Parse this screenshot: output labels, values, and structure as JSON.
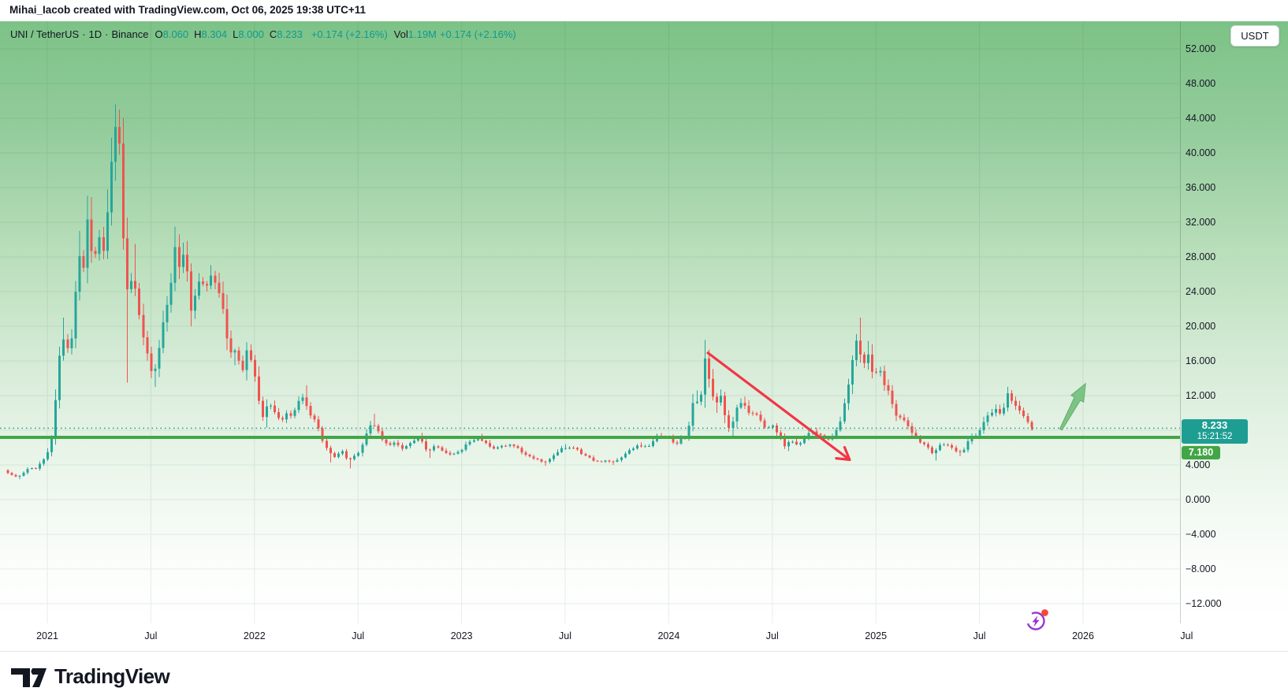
{
  "attribution": "Mihai_Iacob created with TradingView.com, Oct 06, 2025 19:38 UTC+11",
  "header": {
    "currency_button": "USDT"
  },
  "legend": {
    "symbol": "UNI / TetherUS",
    "sep": "·",
    "interval": "1D",
    "exchange": "Binance",
    "ohlc": [
      {
        "label": "O",
        "value": "8.060"
      },
      {
        "label": "H",
        "value": "8.304"
      },
      {
        "label": "L",
        "value": "8.000"
      },
      {
        "label": "C",
        "value": "8.233"
      }
    ],
    "change": "+0.174 (+2.16%)",
    "vol_label": "Vol",
    "vol_value": "1.19M",
    "vol_change": "+0.174 (+2.16%)"
  },
  "price_scale": {
    "ticks": [
      {
        "label": "52.000",
        "value": 52
      },
      {
        "label": "48.000",
        "value": 48
      },
      {
        "label": "44.000",
        "value": 44
      },
      {
        "label": "40.000",
        "value": 40
      },
      {
        "label": "36.000",
        "value": 36
      },
      {
        "label": "32.000",
        "value": 32
      },
      {
        "label": "28.000",
        "value": 28
      },
      {
        "label": "24.000",
        "value": 24
      },
      {
        "label": "20.000",
        "value": 20
      },
      {
        "label": "16.000",
        "value": 16
      },
      {
        "label": "12.000",
        "value": 12
      },
      {
        "label": "4.000",
        "value": 4
      },
      {
        "label": "0.000",
        "value": 0
      },
      {
        "label": "−4.000",
        "value": -4
      },
      {
        "label": "−8.000",
        "value": -8
      },
      {
        "label": "−12.000",
        "value": -12
      }
    ],
    "current_price": {
      "label": "8.233",
      "countdown": "15:21:52",
      "value": 8.233
    },
    "level_label": {
      "label": "7.180",
      "value": 7.18
    }
  },
  "time_scale": {
    "labels": [
      {
        "label": "2021",
        "t": 2021.0
      },
      {
        "label": "Jul",
        "t": 2021.5
      },
      {
        "label": "2022",
        "t": 2022.0
      },
      {
        "label": "Jul",
        "t": 2022.5
      },
      {
        "label": "2023",
        "t": 2023.0
      },
      {
        "label": "Jul",
        "t": 2023.5
      },
      {
        "label": "2024",
        "t": 2024.0
      },
      {
        "label": "Jul",
        "t": 2024.5
      },
      {
        "label": "2025",
        "t": 2025.0
      },
      {
        "label": "Jul",
        "t": 2025.5
      },
      {
        "label": "2026",
        "t": 2026.0
      },
      {
        "label": "Jul",
        "t": 2026.5
      }
    ]
  },
  "footer": {
    "brand": "TradingView"
  },
  "colors": {
    "up": "#26a69a",
    "down": "#ef5350",
    "text": "#131722",
    "teal_text": "#109a92",
    "grid": "rgba(34,85,48,0.10)",
    "current_line": "#1e9e93",
    "level_line": "#42a647",
    "red_arrow": "#f23645",
    "green_arrow_fill": "#7cc485",
    "green_arrow_stroke": "#63ae6d",
    "icon_purple": "#9c32d1",
    "icon_dot": "#f5483d"
  },
  "chart_data": {
    "type": "candlestick",
    "title": "UNI / TetherUS · 1D · Binance",
    "ohlc_current": {
      "open": 8.06,
      "high": 8.304,
      "low": 8.0,
      "close": 8.233,
      "change": "+0.174",
      "change_pct": "+2.16%",
      "volume": "1.19M"
    },
    "y_axis": {
      "min": -13,
      "max": 53,
      "tick_step": 4,
      "unit": "USDT",
      "grid": true
    },
    "x_axis": {
      "start": 2020.8,
      "end": 2026.6,
      "gridline_every_years": 0.5
    },
    "levels": {
      "support_line": 7.18,
      "last_price": 8.233
    },
    "annotations": [
      {
        "type": "arrow",
        "color": "red",
        "from": {
          "t": 2024.185,
          "price": 17.0
        },
        "to": {
          "t": 2024.873,
          "price": 4.6
        }
      },
      {
        "type": "arrow",
        "color": "green",
        "from": {
          "t": 2025.893,
          "price": 8.1
        },
        "to": {
          "t": 2026.012,
          "price": 13.4
        }
      }
    ],
    "price_path": [
      [
        2020.8,
        3.4
      ],
      [
        2020.82,
        3.1
      ],
      [
        2020.845,
        2.75
      ],
      [
        2020.87,
        2.6,
        null,
        2.35
      ],
      [
        2020.9,
        3.2
      ],
      [
        2020.925,
        3.7
      ],
      [
        2020.95,
        3.5
      ],
      [
        2020.975,
        4.2
      ],
      [
        2021.0,
        4.9
      ],
      [
        2021.02,
        6.0
      ],
      [
        2021.04,
        8.0
      ],
      [
        2021.06,
        15.0
      ],
      [
        2021.08,
        19.0,
        21.0,
        null
      ],
      [
        2021.1,
        18.0
      ],
      [
        2021.12,
        16.5
      ],
      [
        2021.14,
        22.0
      ],
      [
        2021.16,
        29.5,
        31.0,
        null
      ],
      [
        2021.18,
        25.5
      ],
      [
        2021.205,
        33.0,
        34.9,
        null
      ],
      [
        2021.23,
        27.0
      ],
      [
        2021.255,
        30.5
      ],
      [
        2021.28,
        28.5
      ],
      [
        2021.305,
        34.0
      ],
      [
        2021.33,
        42.0
      ],
      [
        2021.345,
        44.0,
        45.0,
        null
      ],
      [
        2021.365,
        38.5
      ],
      [
        2021.38,
        28.0,
        null,
        13.5
      ],
      [
        2021.4,
        23.5
      ],
      [
        2021.425,
        26.5,
        29.5,
        null
      ],
      [
        2021.45,
        21.5
      ],
      [
        2021.475,
        18.5
      ],
      [
        2021.5,
        16.0
      ],
      [
        2021.52,
        14.0,
        null,
        13.0
      ],
      [
        2021.545,
        17.0
      ],
      [
        2021.57,
        20.5
      ],
      [
        2021.6,
        23.5
      ],
      [
        2021.625,
        29.0,
        31.5,
        null
      ],
      [
        2021.65,
        26.5
      ],
      [
        2021.675,
        29.5
      ],
      [
        2021.7,
        21.5,
        null,
        20.0
      ],
      [
        2021.725,
        24.0
      ],
      [
        2021.75,
        25.5
      ],
      [
        2021.775,
        24.0
      ],
      [
        2021.8,
        26.0
      ],
      [
        2021.825,
        25.0
      ],
      [
        2021.85,
        23.0
      ],
      [
        2021.875,
        19.0
      ],
      [
        2021.9,
        16.5,
        null,
        15.5
      ],
      [
        2021.925,
        17.5
      ],
      [
        2021.945,
        14.0
      ],
      [
        2021.97,
        17.3
      ],
      [
        2022.0,
        15.8
      ],
      [
        2022.025,
        12.0
      ],
      [
        2022.05,
        9.6,
        null,
        8.3
      ],
      [
        2022.08,
        11.3
      ],
      [
        2022.11,
        10.0
      ],
      [
        2022.14,
        9.0
      ],
      [
        2022.165,
        10.0
      ],
      [
        2022.19,
        9.4
      ],
      [
        2022.22,
        11.2
      ],
      [
        2022.25,
        11.8,
        13.2,
        null
      ],
      [
        2022.28,
        9.6
      ],
      [
        2022.31,
        8.9
      ],
      [
        2022.34,
        6.6
      ],
      [
        2022.37,
        5.4,
        null,
        4.3
      ],
      [
        2022.4,
        4.9
      ],
      [
        2022.43,
        5.7
      ],
      [
        2022.46,
        4.5,
        null,
        3.6
      ],
      [
        2022.49,
        5.0
      ],
      [
        2022.52,
        5.6
      ],
      [
        2022.55,
        7.6
      ],
      [
        2022.575,
        8.9,
        9.9,
        null
      ],
      [
        2022.6,
        8.3
      ],
      [
        2022.63,
        6.7
      ],
      [
        2022.66,
        6.3
      ],
      [
        2022.69,
        6.7
      ],
      [
        2022.72,
        5.9
      ],
      [
        2022.75,
        6.3
      ],
      [
        2022.78,
        6.9
      ],
      [
        2022.81,
        7.1,
        7.7,
        null
      ],
      [
        2022.845,
        5.4,
        null,
        4.8
      ],
      [
        2022.875,
        6.1
      ],
      [
        2022.905,
        5.9
      ],
      [
        2022.935,
        5.4
      ],
      [
        2022.965,
        5.2
      ],
      [
        2023.0,
        5.5
      ],
      [
        2023.03,
        6.3
      ],
      [
        2023.06,
        6.8
      ],
      [
        2023.095,
        7.0,
        7.6,
        null
      ],
      [
        2023.125,
        6.6
      ],
      [
        2023.155,
        5.8
      ],
      [
        2023.185,
        6.1
      ],
      [
        2023.215,
        6.2
      ],
      [
        2023.25,
        6.3
      ],
      [
        2023.28,
        5.9
      ],
      [
        2023.31,
        5.2
      ],
      [
        2023.34,
        5.0
      ],
      [
        2023.37,
        4.7
      ],
      [
        2023.405,
        4.2,
        null,
        3.9
      ],
      [
        2023.44,
        4.8
      ],
      [
        2023.47,
        5.4
      ],
      [
        2023.5,
        6.0,
        6.4,
        null
      ],
      [
        2023.53,
        5.9
      ],
      [
        2023.56,
        6.1
      ],
      [
        2023.59,
        5.3
      ],
      [
        2023.62,
        4.9
      ],
      [
        2023.65,
        4.5
      ],
      [
        2023.68,
        4.3
      ],
      [
        2023.71,
        4.5
      ],
      [
        2023.74,
        4.3,
        null,
        4.0
      ],
      [
        2023.77,
        4.6
      ],
      [
        2023.8,
        5.3
      ],
      [
        2023.83,
        5.9
      ],
      [
        2023.86,
        6.2,
        6.6,
        null
      ],
      [
        2023.89,
        6.0
      ],
      [
        2023.92,
        6.3
      ],
      [
        2023.95,
        7.4
      ],
      [
        2023.98,
        7.1
      ],
      [
        2024.01,
        7.3
      ],
      [
        2024.04,
        6.3
      ],
      [
        2024.07,
        7.0
      ],
      [
        2024.1,
        7.4
      ],
      [
        2024.13,
        11.6,
        12.6,
        null
      ],
      [
        2024.16,
        10.9
      ],
      [
        2024.185,
        16.3,
        17.3,
        null
      ],
      [
        2024.21,
        13.2
      ],
      [
        2024.235,
        10.9,
        null,
        10.0
      ],
      [
        2024.26,
        12.3
      ],
      [
        2024.285,
        9.1
      ],
      [
        2024.31,
        7.9,
        null,
        7.0
      ],
      [
        2024.335,
        10.6
      ],
      [
        2024.36,
        11.3,
        11.9,
        null
      ],
      [
        2024.39,
        10.2
      ],
      [
        2024.42,
        10.0
      ],
      [
        2024.45,
        9.3
      ],
      [
        2024.48,
        8.1
      ],
      [
        2024.51,
        8.6
      ],
      [
        2024.54,
        7.4
      ],
      [
        2024.57,
        6.2,
        null,
        5.6
      ],
      [
        2024.6,
        6.8
      ],
      [
        2024.63,
        6.4
      ],
      [
        2024.66,
        6.7
      ],
      [
        2024.69,
        7.9
      ],
      [
        2024.72,
        7.6
      ],
      [
        2024.75,
        7.3
      ],
      [
        2024.78,
        7.0
      ],
      [
        2024.81,
        7.5
      ],
      [
        2024.84,
        9.1
      ],
      [
        2024.87,
        12.4
      ],
      [
        2024.895,
        16.2
      ],
      [
        2024.92,
        18.6,
        21.0,
        null
      ],
      [
        2024.945,
        15.3
      ],
      [
        2024.97,
        17.1,
        18.3,
        null
      ],
      [
        2025.0,
        14.0
      ],
      [
        2025.025,
        15.2
      ],
      [
        2025.05,
        13.1
      ],
      [
        2025.075,
        12.3
      ],
      [
        2025.1,
        9.7
      ],
      [
        2025.13,
        9.4
      ],
      [
        2025.16,
        8.7
      ],
      [
        2025.19,
        7.5
      ],
      [
        2025.22,
        6.7
      ],
      [
        2025.25,
        6.3
      ],
      [
        2025.285,
        5.3,
        null,
        4.5
      ],
      [
        2025.315,
        6.2
      ],
      [
        2025.345,
        6.4
      ],
      [
        2025.375,
        6.1
      ],
      [
        2025.405,
        5.4,
        null,
        5.0
      ],
      [
        2025.435,
        5.8
      ],
      [
        2025.465,
        7.2
      ],
      [
        2025.495,
        7.4
      ],
      [
        2025.525,
        8.6
      ],
      [
        2025.555,
        9.9
      ],
      [
        2025.585,
        10.4,
        11.0,
        null
      ],
      [
        2025.615,
        9.6
      ],
      [
        2025.645,
        12.2,
        12.9,
        null
      ],
      [
        2025.675,
        11.1
      ],
      [
        2025.705,
        10.2
      ],
      [
        2025.735,
        9.3
      ],
      [
        2025.755,
        8.4
      ],
      [
        2025.765,
        8.233
      ]
    ]
  }
}
